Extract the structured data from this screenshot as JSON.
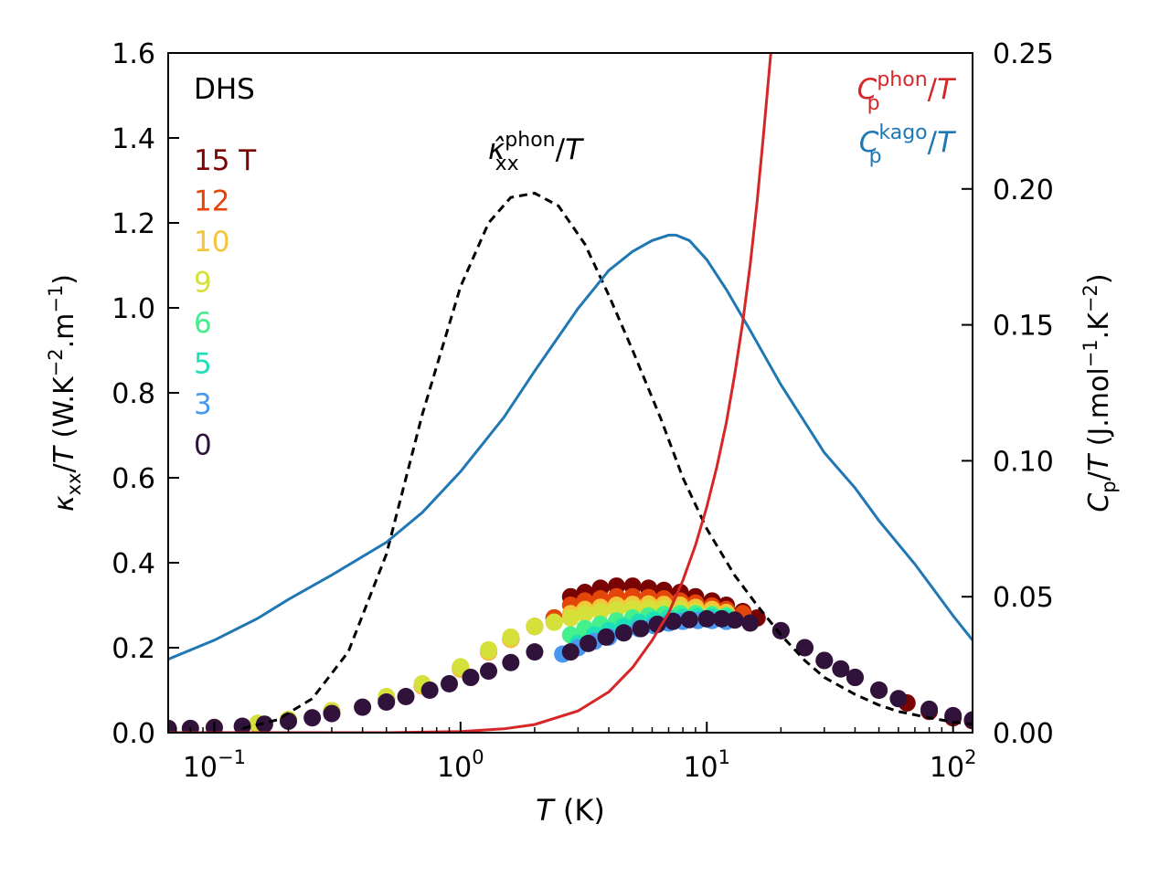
{
  "chart_data": {
    "type": "scatter",
    "title": "",
    "xscale": "log",
    "xlim": [
      0.065,
      120
    ],
    "ylim_left": [
      0,
      1.6
    ],
    "ylim_right": [
      0,
      0.25
    ],
    "x_ticks": [
      {
        "value": 0.1,
        "base": "10",
        "exp": "−1"
      },
      {
        "value": 1,
        "base": "10",
        "exp": "0"
      },
      {
        "value": 10,
        "base": "10",
        "exp": "1"
      },
      {
        "value": 100,
        "base": "10",
        "exp": "2"
      }
    ],
    "y_left_ticks": [
      "0.0",
      "0.2",
      "0.4",
      "0.6",
      "0.8",
      "1.0",
      "1.2",
      "1.4",
      "1.6"
    ],
    "y_right_ticks": [
      "0.00",
      "0.05",
      "0.10",
      "0.15",
      "0.20",
      "0.25"
    ],
    "xlabel": {
      "italic": "T",
      "rest": " (K)"
    },
    "ylabel_left": {
      "kappa": "κ",
      "sub": "xx",
      "slash": "/",
      "T": "T",
      "open": " (W.K",
      "exp1": "−2",
      "mid": ".m",
      "exp2": "−1",
      "close": ")"
    },
    "ylabel_right": {
      "C": "C",
      "sub": "p",
      "slash": "/",
      "T": "T",
      "open": " (J.mol",
      "exp1": "−1",
      "mid": ".K",
      "exp2": "−2",
      "close": ")"
    },
    "sample_label": "DHS",
    "field_legend": [
      {
        "label": "15 T",
        "color": "#7a0403"
      },
      {
        "label": "12",
        "color": "#e4460a"
      },
      {
        "label": "10",
        "color": "#f3c63a"
      },
      {
        "label": "9",
        "color": "#d5e13a"
      },
      {
        "label": "6",
        "color": "#44f08b"
      },
      {
        "label": "5",
        "color": "#1de0b8"
      },
      {
        "label": "3",
        "color": "#4a97f0"
      },
      {
        "label": "0",
        "color": "#30123b"
      }
    ],
    "curve_labels": {
      "kappa_phon": {
        "hat": "κ̂",
        "sup": "phon",
        "sub": "xx",
        "slash": "/",
        "T": "T"
      },
      "cp_phon": {
        "C": "C",
        "sup": "phon",
        "sub": "p",
        "slash": "/",
        "T": "T",
        "color": "#d62728"
      },
      "cp_kago": {
        "C": "C",
        "sup": "kago",
        "sub": "p",
        "slash": "/",
        "T": "T",
        "color": "#1f77b4"
      }
    },
    "curves": [
      {
        "name": "kappa_phon_model",
        "axis": "left",
        "style": "dashed",
        "color": "#000000",
        "x": [
          0.13,
          0.18,
          0.25,
          0.35,
          0.5,
          0.7,
          1.0,
          1.3,
          1.6,
          2.0,
          2.5,
          3.2,
          4.0,
          5.0,
          6.5,
          8.0,
          10,
          13,
          16,
          20,
          25,
          30,
          40,
          50,
          60,
          80,
          100,
          120
        ],
        "y": [
          0.01,
          0.03,
          0.08,
          0.19,
          0.42,
          0.75,
          1.05,
          1.2,
          1.26,
          1.27,
          1.24,
          1.15,
          1.03,
          0.9,
          0.74,
          0.6,
          0.48,
          0.37,
          0.3,
          0.23,
          0.17,
          0.13,
          0.09,
          0.065,
          0.05,
          0.035,
          0.025,
          0.02
        ]
      },
      {
        "name": "cp_kago",
        "axis": "right",
        "style": "solid",
        "color": "#1f77b4",
        "x": [
          0.065,
          0.1,
          0.15,
          0.2,
          0.3,
          0.5,
          0.7,
          1.0,
          1.5,
          2.0,
          3.0,
          4.0,
          5.0,
          6.0,
          7.0,
          7.5,
          8.5,
          10,
          12,
          15,
          20,
          30,
          40,
          50,
          70,
          100,
          120
        ],
        "y": [
          0.027,
          0.034,
          0.042,
          0.049,
          0.058,
          0.07,
          0.081,
          0.096,
          0.116,
          0.133,
          0.156,
          0.17,
          0.177,
          0.181,
          0.183,
          0.183,
          0.181,
          0.174,
          0.163,
          0.148,
          0.128,
          0.103,
          0.09,
          0.078,
          0.062,
          0.043,
          0.034
        ]
      },
      {
        "name": "cp_phon",
        "axis": "right",
        "style": "solid",
        "color": "#d62728",
        "x": [
          0.065,
          0.5,
          1.0,
          1.5,
          2.0,
          3.0,
          4.0,
          5.0,
          6.0,
          7.0,
          8.0,
          9.0,
          10,
          11,
          12,
          13,
          14,
          15,
          16,
          17,
          18.2
        ],
        "y": [
          0.0,
          0.0,
          0.0004,
          0.0014,
          0.003,
          0.008,
          0.015,
          0.024,
          0.034,
          0.044,
          0.056,
          0.069,
          0.083,
          0.098,
          0.114,
          0.132,
          0.151,
          0.172,
          0.195,
          0.22,
          0.25
        ]
      }
    ],
    "series": [
      {
        "name": "15 T",
        "color": "#7a0403",
        "x": [
          0.065,
          0.1,
          0.15,
          0.2,
          0.3,
          0.5,
          0.7,
          1.0,
          1.3,
          1.6,
          2.0,
          2.4,
          2.8,
          3.2,
          3.7,
          4.3,
          5.0,
          5.8,
          6.7,
          7.8,
          9.0,
          10.5,
          12.0,
          14.0,
          16,
          20,
          25,
          30,
          40,
          50,
          65,
          80,
          100,
          120
        ],
        "y": [
          0.01,
          0.012,
          0.02,
          0.03,
          0.05,
          0.08,
          0.11,
          0.15,
          0.19,
          0.22,
          0.25,
          0.27,
          0.32,
          0.33,
          0.34,
          0.345,
          0.345,
          0.34,
          0.335,
          0.33,
          0.32,
          0.31,
          0.3,
          0.285,
          0.27,
          0.24,
          0.2,
          0.17,
          0.13,
          0.1,
          0.07,
          0.05,
          0.035,
          0.028
        ]
      },
      {
        "name": "12",
        "color": "#e4460a",
        "x": [
          0.065,
          0.1,
          0.15,
          0.2,
          0.3,
          0.5,
          0.7,
          1.0,
          1.3,
          1.6,
          2.0,
          2.4,
          2.8,
          3.2,
          3.7,
          4.3,
          5.0,
          5.8,
          6.7,
          7.8,
          9.0,
          10.5,
          12.0,
          14.0
        ],
        "y": [
          0.01,
          0.012,
          0.021,
          0.03,
          0.05,
          0.08,
          0.11,
          0.15,
          0.19,
          0.22,
          0.25,
          0.27,
          0.3,
          0.31,
          0.315,
          0.32,
          0.32,
          0.318,
          0.315,
          0.31,
          0.305,
          0.298,
          0.29,
          0.28
        ]
      },
      {
        "name": "10",
        "color": "#f3c63a",
        "x": [
          0.065,
          0.1,
          0.15,
          0.2,
          0.3,
          0.5,
          0.7,
          1.0,
          1.3,
          1.6,
          2.0,
          2.4,
          2.8,
          3.2,
          3.7,
          4.3,
          5.0,
          5.8,
          6.7,
          7.8,
          9.0,
          10.5,
          12.0
        ],
        "y": [
          0.01,
          0.012,
          0.021,
          0.03,
          0.05,
          0.08,
          0.11,
          0.15,
          0.19,
          0.22,
          0.25,
          0.26,
          0.28,
          0.29,
          0.295,
          0.3,
          0.302,
          0.303,
          0.302,
          0.3,
          0.295,
          0.29,
          0.283
        ]
      },
      {
        "name": "9",
        "color": "#d5e13a",
        "x": [
          0.065,
          0.1,
          0.15,
          0.2,
          0.3,
          0.5,
          0.7,
          1.0,
          1.3,
          1.6,
          2.0,
          2.4,
          2.8,
          3.2,
          3.7,
          4.3,
          5.0,
          5.8,
          6.7,
          7.8,
          9.0,
          10.5,
          12.0
        ],
        "y": [
          0.01,
          0.012,
          0.022,
          0.031,
          0.052,
          0.085,
          0.115,
          0.155,
          0.195,
          0.225,
          0.25,
          0.26,
          0.27,
          0.28,
          0.285,
          0.29,
          0.292,
          0.293,
          0.292,
          0.29,
          0.285,
          0.28,
          0.275
        ]
      },
      {
        "name": "6",
        "color": "#44f08b",
        "x": [
          2.8,
          3.2,
          3.7,
          4.3,
          5.0,
          5.8,
          6.7,
          7.8,
          9.0,
          10.5,
          12.0
        ],
        "y": [
          0.23,
          0.245,
          0.255,
          0.263,
          0.27,
          0.275,
          0.278,
          0.28,
          0.28,
          0.278,
          0.275
        ]
      },
      {
        "name": "5",
        "color": "#1de0b8",
        "x": [
          3.0,
          3.5,
          4.0,
          4.6,
          5.3,
          6.1,
          7.0,
          8.0,
          9.2,
          10.5,
          12.0
        ],
        "y": [
          0.21,
          0.23,
          0.24,
          0.25,
          0.26,
          0.265,
          0.27,
          0.272,
          0.273,
          0.272,
          0.27
        ]
      },
      {
        "name": "3",
        "color": "#4a97f0",
        "x": [
          2.6,
          3.0,
          3.5,
          4.0,
          4.6,
          5.3,
          6.1,
          7.0,
          8.0,
          9.2,
          10.5,
          12.0
        ],
        "y": [
          0.185,
          0.2,
          0.215,
          0.225,
          0.235,
          0.245,
          0.252,
          0.258,
          0.262,
          0.264,
          0.264,
          0.262
        ]
      },
      {
        "name": "0",
        "color": "#30123b",
        "x": [
          0.065,
          0.08,
          0.1,
          0.13,
          0.16,
          0.2,
          0.25,
          0.3,
          0.4,
          0.5,
          0.6,
          0.75,
          0.9,
          1.1,
          1.3,
          1.6,
          2.0,
          2.8,
          3.3,
          3.9,
          4.6,
          5.4,
          6.3,
          7.3,
          8.5,
          10,
          11.5,
          13,
          15,
          20,
          25,
          30,
          35,
          40,
          50,
          60,
          80,
          100,
          120
        ],
        "y": [
          0.01,
          0.01,
          0.012,
          0.015,
          0.02,
          0.027,
          0.035,
          0.045,
          0.06,
          0.072,
          0.085,
          0.1,
          0.115,
          0.13,
          0.145,
          0.165,
          0.19,
          0.19,
          0.21,
          0.225,
          0.235,
          0.245,
          0.255,
          0.262,
          0.266,
          0.268,
          0.268,
          0.265,
          0.258,
          0.24,
          0.2,
          0.17,
          0.15,
          0.13,
          0.1,
          0.08,
          0.055,
          0.04,
          0.03
        ]
      }
    ]
  }
}
